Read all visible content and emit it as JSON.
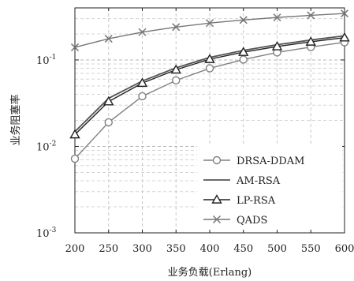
{
  "chart_data": {
    "type": "line",
    "title": "",
    "xlabel": "业务负载(Erlang)",
    "ylabel": "业务阻塞率",
    "x": [
      200,
      250,
      300,
      350,
      400,
      450,
      500,
      550,
      600
    ],
    "xlim": [
      200,
      600
    ],
    "ylim": [
      0.001,
      0.4
    ],
    "yscale": "log",
    "grid": true,
    "legend_position": "bottom-right",
    "xticks": [
      "200",
      "250",
      "300",
      "350",
      "400",
      "450",
      "500",
      "550",
      "600"
    ],
    "yticks": [
      {
        "value": 0.001,
        "base": "10",
        "exp": "-3"
      },
      {
        "value": 0.01,
        "base": "10",
        "exp": "-2"
      },
      {
        "value": 0.1,
        "base": "10",
        "exp": "-1"
      }
    ],
    "series": [
      {
        "name": "DRSA-DDAM",
        "marker": "circle",
        "color": "#808080",
        "values": [
          0.0072,
          0.019,
          0.038,
          0.058,
          0.08,
          0.101,
          0.122,
          0.141,
          0.16
        ]
      },
      {
        "name": "AM-RSA",
        "marker": "none",
        "color": "#555555",
        "values": [
          0.0148,
          0.036,
          0.057,
          0.081,
          0.107,
          0.129,
          0.15,
          0.17,
          0.19
        ]
      },
      {
        "name": "LP-RSA",
        "marker": "triangle",
        "color": "#222222",
        "values": [
          0.0137,
          0.033,
          0.054,
          0.077,
          0.102,
          0.123,
          0.143,
          0.162,
          0.181
        ]
      },
      {
        "name": "QADS",
        "marker": "x",
        "color": "#777777",
        "values": [
          0.14,
          0.176,
          0.21,
          0.24,
          0.267,
          0.29,
          0.31,
          0.328,
          0.345
        ]
      }
    ]
  }
}
